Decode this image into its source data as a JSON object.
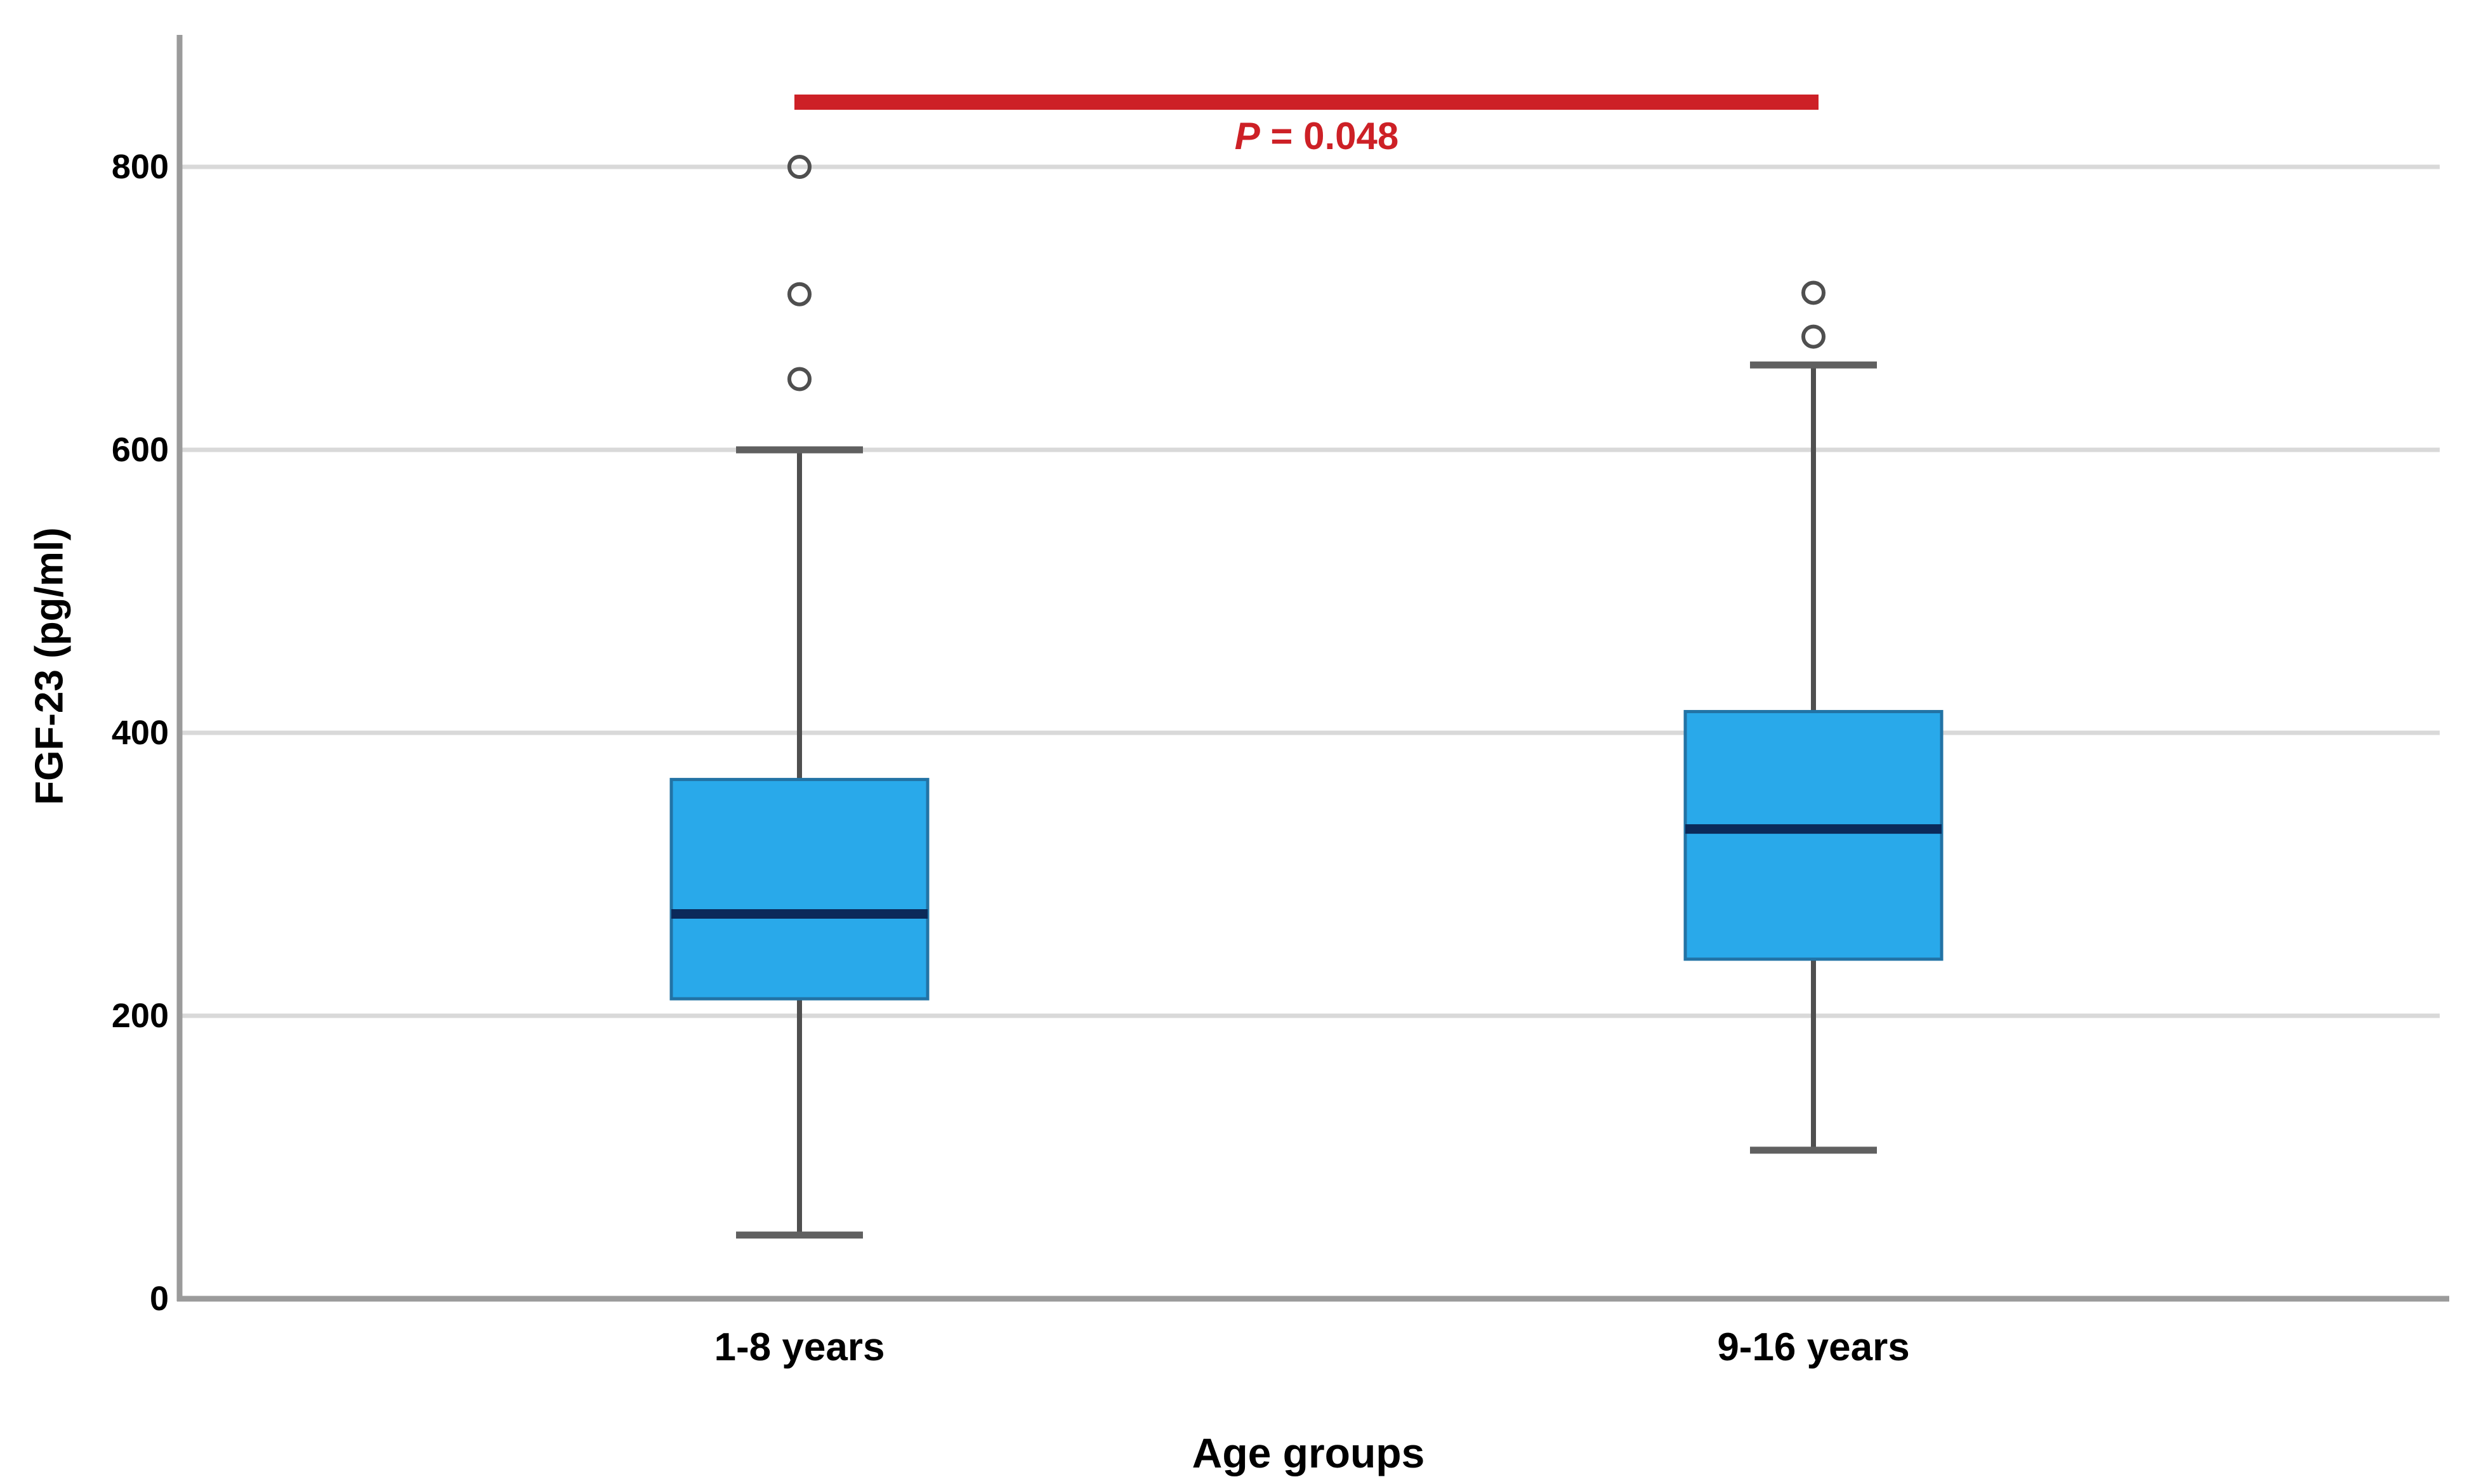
{
  "chart_data": {
    "type": "boxplot",
    "xlabel": "Age groups",
    "ylabel": "FGF-23 (pg/ml)",
    "categories": [
      "1-8 years",
      "9-16 years"
    ],
    "ytick_values": [
      0,
      200,
      400,
      600,
      800
    ],
    "ylim": [
      0,
      892
    ],
    "grid": "horizontal-light-gray",
    "legend": "none",
    "series": [
      {
        "name": "1-8 years",
        "whisker_low": 45,
        "q1": 212,
        "median": 272,
        "q3": 367,
        "whisker_high": 600,
        "outliers": [
          650,
          710,
          800
        ]
      },
      {
        "name": "9-16 years",
        "whisker_low": 105,
        "q1": 240,
        "median": 332,
        "q3": 415,
        "whisker_high": 660,
        "outliers": [
          680,
          711
        ]
      }
    ],
    "annotation": {
      "p_symbol": "P",
      "p_rest": " = 0.048",
      "spans_groups": [
        "1-8 years",
        "9-16 years"
      ]
    }
  },
  "colors": {
    "box_fill": "#29A9EA",
    "box_border": "#2273A5",
    "median_line": "#0B2A5A",
    "whisker": "#4F4F4F",
    "whisker_cap": "#606060",
    "outlier_ring": "#4F4F4F",
    "gridline": "#D9D9D9",
    "axis_line": "#9B9B9B",
    "significance_red": "#CD2026",
    "text": "#000000",
    "background": "#FFFFFF"
  }
}
